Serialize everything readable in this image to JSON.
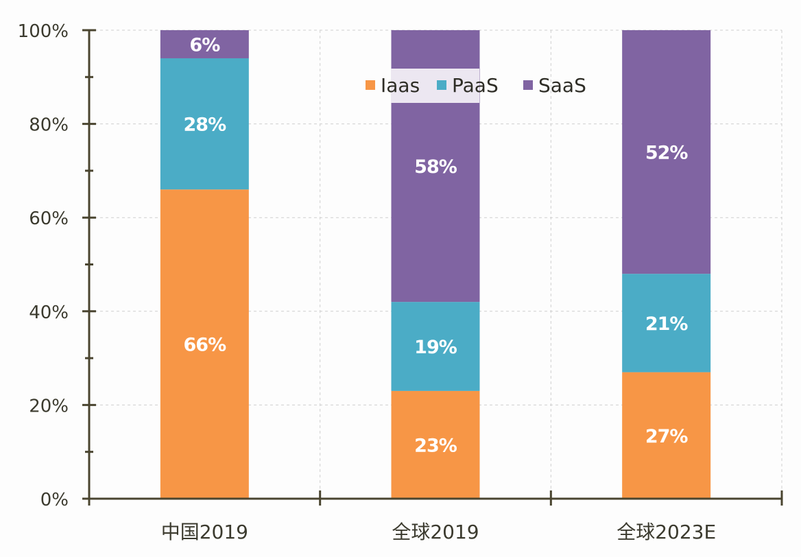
{
  "chart_data": {
    "type": "bar",
    "stacked": true,
    "title": "",
    "xlabel": "",
    "ylabel": "",
    "ylim": [
      0,
      100
    ],
    "yticks": [
      "0%",
      "20%",
      "40%",
      "60%",
      "80%",
      "100%"
    ],
    "ytick_values": [
      0,
      20,
      40,
      60,
      80,
      100
    ],
    "minor_tick_step": 10,
    "grid": true,
    "legend_position": "top-center",
    "categories": [
      "中国2019",
      "全球2019",
      "全球2023E"
    ],
    "series": [
      {
        "name": "Iaas",
        "color": "#f79646",
        "values": [
          66,
          23,
          27
        ],
        "labels": [
          "66%",
          "23%",
          "27%"
        ]
      },
      {
        "name": "PaaS",
        "color": "#4bacc6",
        "values": [
          28,
          19,
          21
        ],
        "labels": [
          "28%",
          "19%",
          "21%"
        ]
      },
      {
        "name": "SaaS",
        "color": "#8064a2",
        "values": [
          6,
          58,
          52
        ],
        "labels": [
          "6%",
          "58%",
          "52%"
        ]
      }
    ]
  },
  "colors": {
    "axis": "#4a4530",
    "grid": "#cfcfcf",
    "label_text": "#ffffff"
  }
}
